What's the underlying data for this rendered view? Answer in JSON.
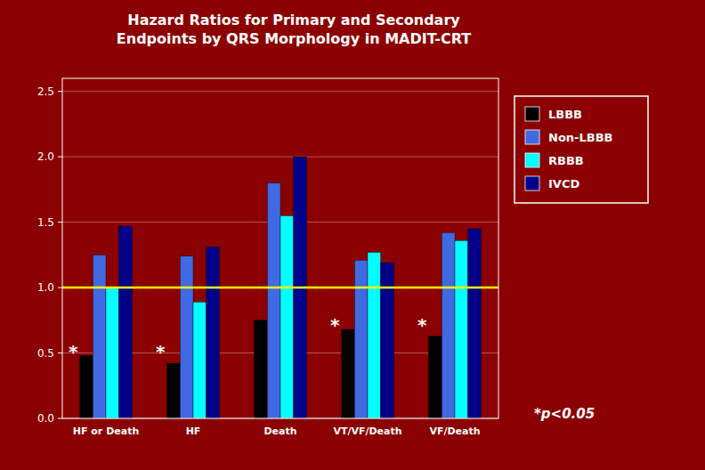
{
  "chart_data": {
    "type": "bar",
    "title": "Hazard Ratios for Primary and Secondary\nEndpoints by QRS Morphology in MADIT-CRT",
    "categories": [
      "HF or Death",
      "HF",
      "Death",
      "VT/VF/Death",
      "VF/Death"
    ],
    "series": [
      {
        "name": "LBBB",
        "color": "#000000",
        "values": [
          0.48,
          0.42,
          0.75,
          0.68,
          0.63
        ]
      },
      {
        "name": "Non-LBBB",
        "color": "#4169E1",
        "values": [
          1.25,
          1.24,
          1.8,
          1.21,
          1.42
        ]
      },
      {
        "name": "RBBB",
        "color": "#00FFFF",
        "values": [
          1.0,
          0.89,
          1.55,
          1.27,
          1.36
        ]
      },
      {
        "name": "IVCD",
        "color": "#00008B",
        "values": [
          1.47,
          1.31,
          2.0,
          1.19,
          1.45
        ]
      }
    ],
    "ylim": [
      0.0,
      2.6
    ],
    "yticks": [
      {
        "value": 0.0,
        "label": "0.0"
      },
      0.5,
      {
        "value": 1.0,
        "label": "1.0"
      },
      1.5,
      {
        "value": 2.0,
        "label": "2.0"
      },
      2.5
    ],
    "hline": {
      "y": 1.0,
      "color": "#FFFF00"
    },
    "annotations": [
      {
        "text": "*",
        "category": "HF or Death",
        "y": 0.56
      },
      {
        "text": "*",
        "category": "HF",
        "y": 0.56
      },
      {
        "text": "*",
        "category": "VT/VF/Death",
        "y": 0.76
      },
      {
        "text": "*",
        "category": "VF/Death",
        "y": 0.76
      },
      {
        "text": "*p<0.05"
      }
    ],
    "grid": true,
    "legend": "right"
  }
}
